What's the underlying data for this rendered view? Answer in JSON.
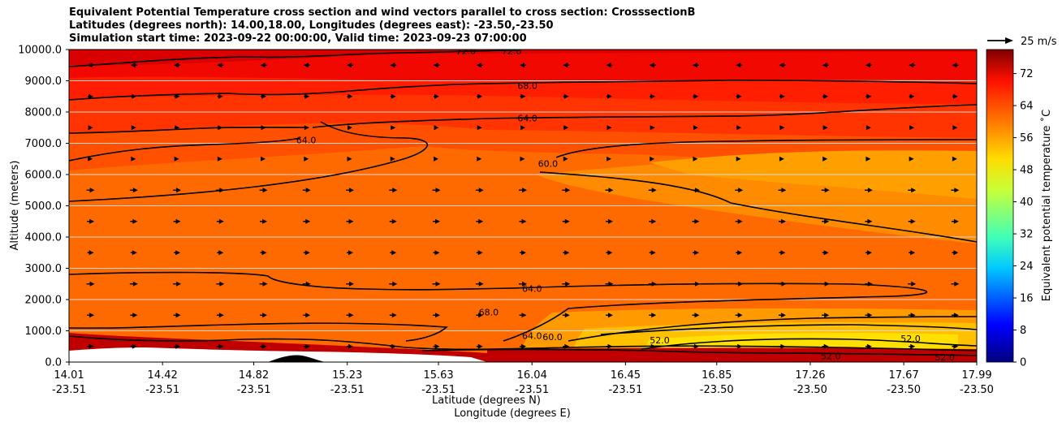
{
  "chart_data": {
    "type": "heatmap",
    "title_lines": [
      "Equivalent Potential Temperature cross section and wind vectors parallel to cross section: CrosssectionB",
      "Latitudes (degrees north): 14.00,18.00, Longitudes (degrees east): -23.50,-23.50",
      "Simulation start time: 2023-09-22 00:00:00, Valid time: 2023-09-23 07:00:00"
    ],
    "xlabel_lat": "Latitude (degrees N)",
    "xlabel_lon": "Longitude (degrees E)",
    "ylabel": "Altitude (meters)",
    "ylim": [
      0,
      10000
    ],
    "yticks": [
      "0.0",
      "1000.0",
      "2000.0",
      "3000.0",
      "4000.0",
      "5000.0",
      "6000.0",
      "7000.0",
      "8000.0",
      "9000.0",
      "10000.0"
    ],
    "xticks_lat": [
      "14.01",
      "14.42",
      "14.82",
      "15.23",
      "15.63",
      "16.04",
      "16.45",
      "16.85",
      "17.26",
      "17.67",
      "17.99"
    ],
    "xticks_lon": [
      "-23.51",
      "-23.51",
      "-23.51",
      "-23.51",
      "-23.51",
      "-23.51",
      "-23.51",
      "-23.50",
      "-23.50",
      "-23.50",
      "-23.50"
    ],
    "grid": "horizontal",
    "colorbar": {
      "label": "Equivalent potential temperature ˚C",
      "ticks": [
        "0",
        "8",
        "16",
        "24",
        "32",
        "40",
        "48",
        "56",
        "64",
        "72"
      ],
      "range": [
        0,
        78
      ]
    },
    "wind_key": "25 m/s",
    "contour_labels": [
      {
        "text": "72.0",
        "lat": 15.75,
        "alt": 9950
      },
      {
        "text": "72.0",
        "lat": 15.95,
        "alt": 9950
      },
      {
        "text": "68.0",
        "lat": 16.02,
        "alt": 8850
      },
      {
        "text": "64.0",
        "lat": 16.02,
        "alt": 7800
      },
      {
        "text": "64.0",
        "lat": 15.05,
        "alt": 7100
      },
      {
        "text": "60.0",
        "lat": 16.11,
        "alt": 6350
      },
      {
        "text": "64.0",
        "lat": 16.04,
        "alt": 2350
      },
      {
        "text": "68.0",
        "lat": 15.85,
        "alt": 1600
      },
      {
        "text": "64.0",
        "lat": 16.04,
        "alt": 850
      },
      {
        "text": "60.0",
        "lat": 16.13,
        "alt": 800
      },
      {
        "text": "52.0",
        "lat": 16.6,
        "alt": 700
      },
      {
        "text": "52.0",
        "lat": 17.7,
        "alt": 750
      },
      {
        "text": "52.0",
        "lat": 17.35,
        "alt": 200
      },
      {
        "text": "52.0",
        "lat": 17.85,
        "alt": 150
      }
    ]
  }
}
